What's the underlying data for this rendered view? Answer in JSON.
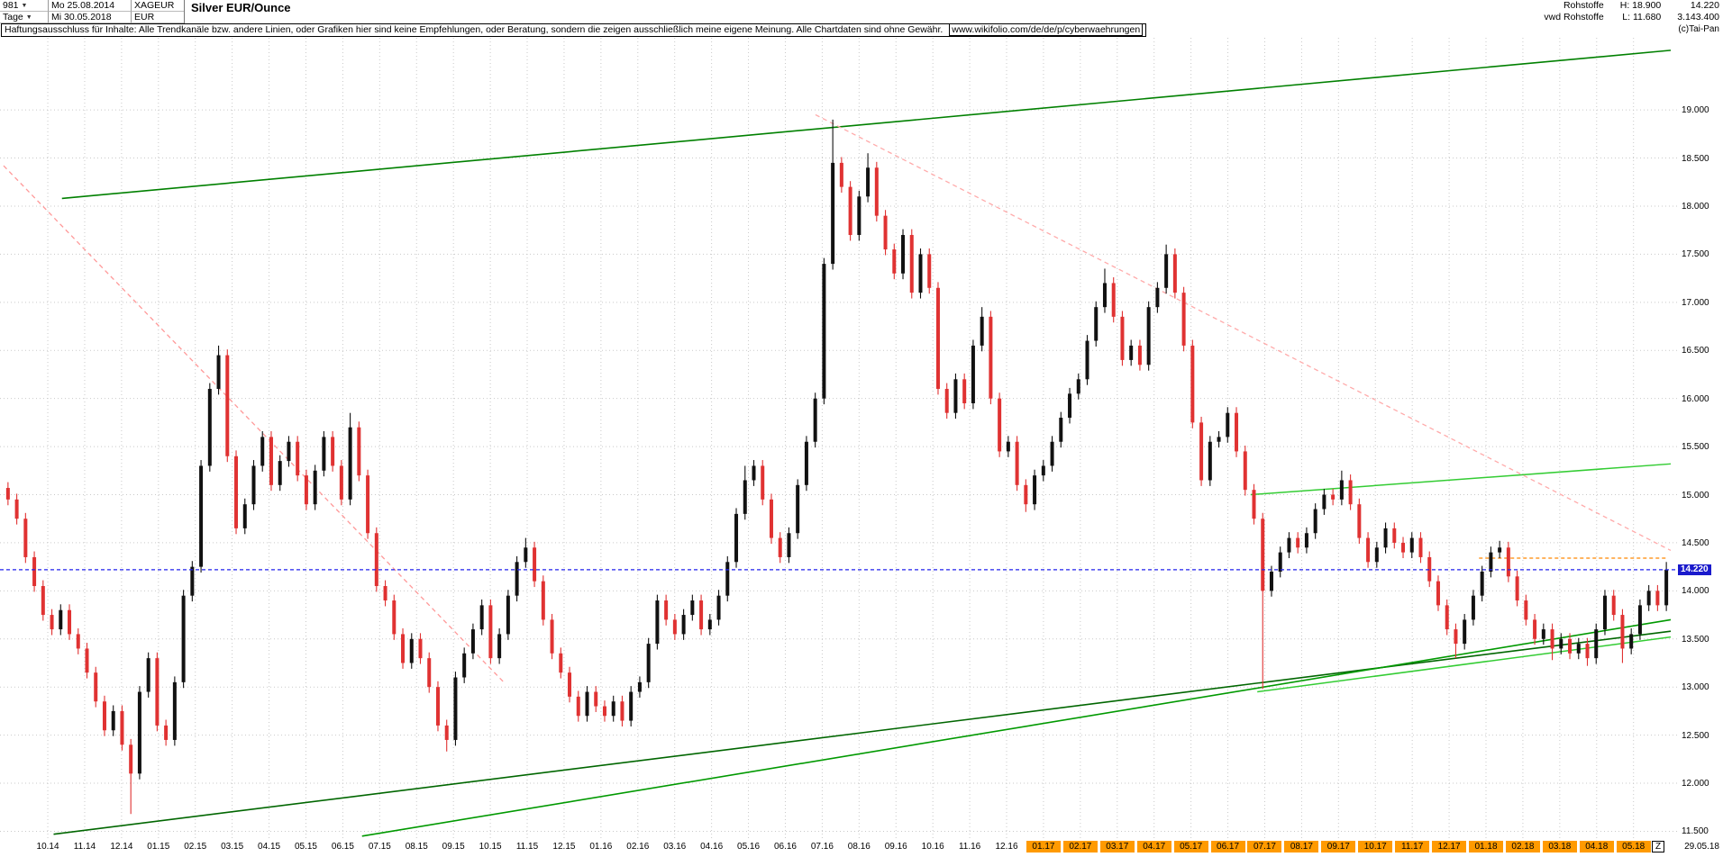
{
  "header": {
    "bars_count": "981",
    "start_date": "Mo 25.08.2014",
    "symbol": "XAGEUR",
    "title": "Silver EUR/Ounce",
    "period": "Tage",
    "end_date": "Mi 30.05.2018",
    "currency": "EUR",
    "right": {
      "group": "Rohstoffe",
      "feed": "vwd Rohstoffe",
      "high_label": "H: 18.900",
      "low_label": "L: 11.680",
      "last_price": "14.220",
      "volume": "3.143.400"
    }
  },
  "disclaimer": {
    "text": "Haftungsausschluss für Inhalte: Alle Trendkanäle bzw. andere Linien, oder Grafiken hier sind keine Empfehlungen, oder Beratung, sondern die zeigen ausschließlich meine eigene Meinung. Alle Chartdaten sind ohne Gewähr.",
    "link": "www.wikifolio.com/de/de/p/cyberwaehrungen",
    "copyright": "(c)Tai-Pan"
  },
  "x_axis_end": {
    "z_marker": "Z",
    "last_date": "29.05.18"
  },
  "chart_data": {
    "type": "candlestick",
    "title": "Silver EUR/Ounce",
    "instrument": "XAGEUR",
    "period_shown": "25.08.2014 - 30.05.2018 (981 daily bars)",
    "range_high": 18.9,
    "range_low": 11.68,
    "last_price": 14.22,
    "last_price_label": "14.220",
    "ylim": [
      11.42,
      19.75
    ],
    "grid": true,
    "colors": {
      "up": "#111111",
      "down": "#e03232",
      "grid": "#c9c9c9",
      "last_line": "#2222ee"
    },
    "y_ticks": [
      {
        "v": 19.0,
        "label": "19.000"
      },
      {
        "v": 18.5,
        "label": "18.500"
      },
      {
        "v": 18.0,
        "label": "18.000"
      },
      {
        "v": 17.5,
        "label": "17.500"
      },
      {
        "v": 17.0,
        "label": "17.000"
      },
      {
        "v": 16.5,
        "label": "16.500"
      },
      {
        "v": 16.0,
        "label": "16.000"
      },
      {
        "v": 15.5,
        "label": "15.500"
      },
      {
        "v": 15.0,
        "label": "15.000"
      },
      {
        "v": 14.5,
        "label": "14.500"
      },
      {
        "v": 14.0,
        "label": "14.000"
      },
      {
        "v": 13.5,
        "label": "13.500"
      },
      {
        "v": 13.0,
        "label": "13.000"
      },
      {
        "v": 12.5,
        "label": "12.500"
      },
      {
        "v": 12.0,
        "label": "12.000"
      },
      {
        "v": 11.5,
        "label": "11.500"
      }
    ],
    "x_labels": [
      {
        "label": "10.14",
        "hl": false
      },
      {
        "label": "11.14",
        "hl": false
      },
      {
        "label": "12.14",
        "hl": false
      },
      {
        "label": "01.15",
        "hl": false
      },
      {
        "label": "02.15",
        "hl": false
      },
      {
        "label": "03.15",
        "hl": false
      },
      {
        "label": "04.15",
        "hl": false
      },
      {
        "label": "05.15",
        "hl": false
      },
      {
        "label": "06.15",
        "hl": false
      },
      {
        "label": "07.15",
        "hl": false
      },
      {
        "label": "08.15",
        "hl": false
      },
      {
        "label": "09.15",
        "hl": false
      },
      {
        "label": "10.15",
        "hl": false
      },
      {
        "label": "11.15",
        "hl": false
      },
      {
        "label": "12.15",
        "hl": false
      },
      {
        "label": "01.16",
        "hl": false
      },
      {
        "label": "02.16",
        "hl": false
      },
      {
        "label": "03.16",
        "hl": false
      },
      {
        "label": "04.16",
        "hl": false
      },
      {
        "label": "05.16",
        "hl": false
      },
      {
        "label": "06.16",
        "hl": false
      },
      {
        "label": "07.16",
        "hl": false
      },
      {
        "label": "08.16",
        "hl": false
      },
      {
        "label": "09.16",
        "hl": false
      },
      {
        "label": "10.16",
        "hl": false
      },
      {
        "label": "11.16",
        "hl": false
      },
      {
        "label": "12.16",
        "hl": false
      },
      {
        "label": "01.17",
        "hl": true
      },
      {
        "label": "02.17",
        "hl": true
      },
      {
        "label": "03.17",
        "hl": true
      },
      {
        "label": "04.17",
        "hl": true
      },
      {
        "label": "05.17",
        "hl": true
      },
      {
        "label": "06.17",
        "hl": true
      },
      {
        "label": "07.17",
        "hl": true
      },
      {
        "label": "08.17",
        "hl": true
      },
      {
        "label": "09.17",
        "hl": true
      },
      {
        "label": "10.17",
        "hl": true
      },
      {
        "label": "11.17",
        "hl": true
      },
      {
        "label": "12.17",
        "hl": true
      },
      {
        "label": "01.18",
        "hl": true
      },
      {
        "label": "02.18",
        "hl": true
      },
      {
        "label": "03.18",
        "hl": true
      },
      {
        "label": "04.18",
        "hl": true
      },
      {
        "label": "05.18",
        "hl": true
      }
    ],
    "series_note": "weekly approximation (closes, EUR/oz) of the 981 daily bars shown",
    "closes": [
      14.95,
      14.75,
      14.35,
      14.05,
      13.75,
      13.6,
      13.8,
      13.55,
      13.4,
      13.15,
      12.85,
      12.55,
      12.75,
      12.4,
      12.1,
      12.95,
      13.3,
      12.6,
      12.45,
      13.05,
      13.95,
      14.25,
      15.3,
      16.1,
      16.45,
      15.4,
      14.65,
      14.9,
      15.3,
      15.6,
      15.1,
      15.35,
      15.55,
      15.2,
      14.9,
      15.25,
      15.6,
      15.3,
      14.95,
      15.7,
      15.2,
      14.6,
      14.05,
      13.9,
      13.55,
      13.25,
      13.5,
      13.3,
      13.0,
      12.6,
      12.45,
      13.1,
      13.35,
      13.6,
      13.85,
      13.3,
      13.55,
      13.95,
      14.3,
      14.45,
      14.1,
      13.7,
      13.35,
      13.15,
      12.9,
      12.7,
      12.95,
      12.8,
      12.7,
      12.85,
      12.65,
      12.95,
      13.05,
      13.45,
      13.9,
      13.7,
      13.55,
      13.75,
      13.9,
      13.6,
      13.7,
      13.95,
      14.3,
      14.8,
      15.15,
      15.3,
      14.95,
      14.55,
      14.35,
      14.6,
      15.1,
      15.55,
      16.0,
      17.4,
      18.45,
      18.2,
      17.7,
      18.1,
      18.4,
      17.9,
      17.55,
      17.3,
      17.7,
      17.1,
      17.5,
      17.15,
      16.1,
      15.85,
      16.2,
      15.95,
      16.55,
      16.85,
      16.0,
      15.45,
      15.55,
      15.1,
      14.9,
      15.2,
      15.3,
      15.55,
      15.8,
      16.05,
      16.2,
      16.6,
      16.95,
      17.2,
      16.85,
      16.4,
      16.55,
      16.35,
      16.95,
      17.15,
      17.5,
      17.1,
      16.55,
      15.75,
      15.15,
      15.55,
      15.6,
      15.85,
      15.45,
      15.05,
      14.75,
      14.0,
      14.2,
      14.4,
      14.55,
      14.45,
      14.6,
      14.85,
      15.0,
      14.95,
      15.15,
      14.9,
      14.55,
      14.3,
      14.45,
      14.65,
      14.5,
      14.4,
      14.55,
      14.35,
      14.1,
      13.85,
      13.6,
      13.45,
      13.7,
      13.95,
      14.2,
      14.4,
      14.45,
      14.15,
      13.9,
      13.7,
      13.5,
      13.6,
      13.4,
      13.5,
      13.35,
      13.45,
      13.3,
      13.6,
      13.95,
      13.75,
      13.4,
      13.55,
      13.85,
      14.0,
      13.85,
      14.22
    ],
    "wick_overrides": {
      "14": {
        "l": 11.68
      },
      "24": {
        "h": 16.55
      },
      "39": {
        "h": 15.85
      },
      "50": {
        "l": 12.33
      },
      "59": {
        "h": 14.55
      },
      "84": {
        "h": 15.3
      },
      "94": {
        "h": 18.9
      },
      "98": {
        "h": 18.55
      },
      "111": {
        "h": 16.95
      },
      "116": {
        "l": 14.82
      },
      "125": {
        "h": 17.35
      },
      "132": {
        "h": 17.6
      },
      "143": {
        "l": 12.98
      },
      "152": {
        "h": 15.25
      },
      "165": {
        "l": 13.3
      },
      "170": {
        "h": 14.52
      },
      "176": {
        "l": 13.28
      },
      "180": {
        "l": 13.22
      },
      "184": {
        "l": 13.25
      },
      "189": {
        "h": 14.3
      }
    },
    "trend_lines": [
      {
        "name": "upper-channel-line",
        "x1": 0.035,
        "p1": 18.08,
        "x2": 1.0,
        "p2": 19.62,
        "color": "#008000",
        "width": 1.6,
        "dash": null
      },
      {
        "name": "lower-trend-line-long",
        "x1": 0.03,
        "p1": 11.47,
        "x2": 1.0,
        "p2": 13.58,
        "color": "#006600",
        "width": 1.6,
        "dash": null
      },
      {
        "name": "lower-trend-line-steep",
        "x1": 0.215,
        "p1": 11.45,
        "x2": 1.0,
        "p2": 13.7,
        "color": "#009900",
        "width": 1.6,
        "dash": null
      },
      {
        "name": "recent-support-line",
        "x1": 0.752,
        "p1": 12.95,
        "x2": 1.0,
        "p2": 13.52,
        "color": "#33cc33",
        "width": 1.5,
        "dash": null
      },
      {
        "name": "recent-resistance-line",
        "x1": 0.748,
        "p1": 15.0,
        "x2": 1.0,
        "p2": 15.32,
        "color": "#33cc33",
        "width": 1.5,
        "dash": null
      },
      {
        "name": "downtrend-2015",
        "x1": 0.0,
        "p1": 18.42,
        "x2": 0.3,
        "p2": 13.05,
        "color": "#ff9999",
        "width": 1.3,
        "dash": "5,4"
      },
      {
        "name": "downtrend-2016-2018",
        "x1": 0.487,
        "p1": 18.95,
        "x2": 1.0,
        "p2": 14.42,
        "color": "#ffaaaa",
        "width": 1.3,
        "dash": "5,4"
      },
      {
        "name": "orange-level-line",
        "x1": 0.885,
        "p1": 14.34,
        "x2": 0.998,
        "p2": 14.34,
        "color": "#ff8800",
        "width": 1.3,
        "dash": "4,3"
      }
    ]
  }
}
